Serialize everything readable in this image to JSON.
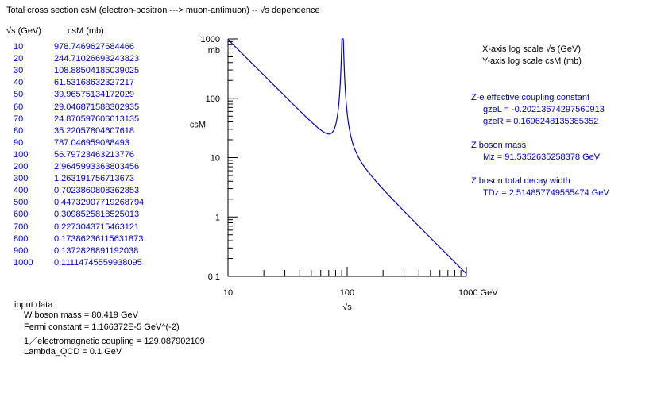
{
  "title": "Total cross section  csM (electron-positron ---> muon-antimuon) -- √s dependence",
  "table": {
    "col1_header": "√s  (GeV)",
    "col2_header": "csM  (mb)",
    "rows": [
      {
        "s": "10",
        "cs": "978.7469627684466"
      },
      {
        "s": "20",
        "cs": "244.71026693243823"
      },
      {
        "s": "30",
        "cs": "108.88504186039025"
      },
      {
        "s": "40",
        "cs": "61.53168632327217"
      },
      {
        "s": "50",
        "cs": "39.96575134172029"
      },
      {
        "s": "60",
        "cs": "29.046871588302935"
      },
      {
        "s": "70",
        "cs": "24.870597606013135"
      },
      {
        "s": "80",
        "cs": "35.22057804607618"
      },
      {
        "s": "90",
        "cs": "787.046959088493"
      },
      {
        "s": "100",
        "cs": "56.79723463213776"
      },
      {
        "s": "200",
        "cs": "2.9645993363803456"
      },
      {
        "s": "300",
        "cs": "1.263191756713673"
      },
      {
        "s": "400",
        "cs": "0.7023860808362853"
      },
      {
        "s": "500",
        "cs": "0.44732907719268794"
      },
      {
        "s": "600",
        "cs": "0.3098525818525013"
      },
      {
        "s": "700",
        "cs": "0.2273043715463121"
      },
      {
        "s": "800",
        "cs": "0.17386236115631873"
      },
      {
        "s": "900",
        "cs": "0.1372828891192038"
      },
      {
        "s": "1000",
        "cs": "0.11114745559938095"
      }
    ]
  },
  "input_data": {
    "heading": "input data :",
    "lines": [
      "W boson mass = 80.419 GeV",
      "Fermi constant = 1.166372E-5 GeV^(-2)",
      "1／electromagnetic coupling = 129.087902109",
      "Lambda_QCD = 0.1 GeV"
    ]
  },
  "info": {
    "xscale": "X-axis log scale  √s (GeV)",
    "yscale": "Y-axis log scale  csM (mb)",
    "coupling_heading": "Z-e effective coupling constant",
    "gzeL": "gzeL = -0.20213674297560913",
    "gzeR": "gzeR = 0.1696248135385352",
    "mass_heading": "Z boson mass",
    "mz": "Mz = 91.5352635258378 GeV",
    "width_heading": "Z boson total decay width",
    "tdz": "TDz = 2.514857749555474 GeV"
  },
  "chart_data": {
    "type": "line",
    "xscale": "log",
    "yscale": "log",
    "xlim": [
      10,
      1000
    ],
    "ylim": [
      0.1,
      1000
    ],
    "xlabel": "√s",
    "ylabel": "csM",
    "y_unit_label": "mb",
    "x_tick_labels": [
      {
        "value": 10,
        "label": "10"
      },
      {
        "value": 100,
        "label": "100"
      },
      {
        "value": 1000,
        "label": "1000 GeV"
      }
    ],
    "y_tick_labels": [
      {
        "value": 1000,
        "label": "1000"
      },
      {
        "value": 100,
        "label": "100"
      },
      {
        "value": 10,
        "label": "10"
      },
      {
        "value": 1,
        "label": "1"
      },
      {
        "value": 0.1,
        "label": "0.1"
      }
    ],
    "grid": false,
    "line_color": "#0000cc",
    "series": [
      {
        "x": [
          10,
          20,
          30,
          40,
          50,
          60,
          70,
          80,
          90,
          100,
          200,
          300,
          400,
          500,
          600,
          700,
          800,
          900,
          1000
        ],
        "y": [
          978.7469627684466,
          244.71026693243823,
          108.88504186039025,
          61.53168632327217,
          39.96575134172029,
          29.046871588302935,
          24.870597606013135,
          35.22057804607618,
          787.046959088493,
          56.79723463213776,
          2.9645993363803456,
          1.263191756713673,
          0.7023860808362853,
          0.44732907719268794,
          0.3098525818525013,
          0.2273043715463121,
          0.17386236115631873,
          0.1372828891192038,
          0.11114745559938095
        ]
      }
    ]
  }
}
